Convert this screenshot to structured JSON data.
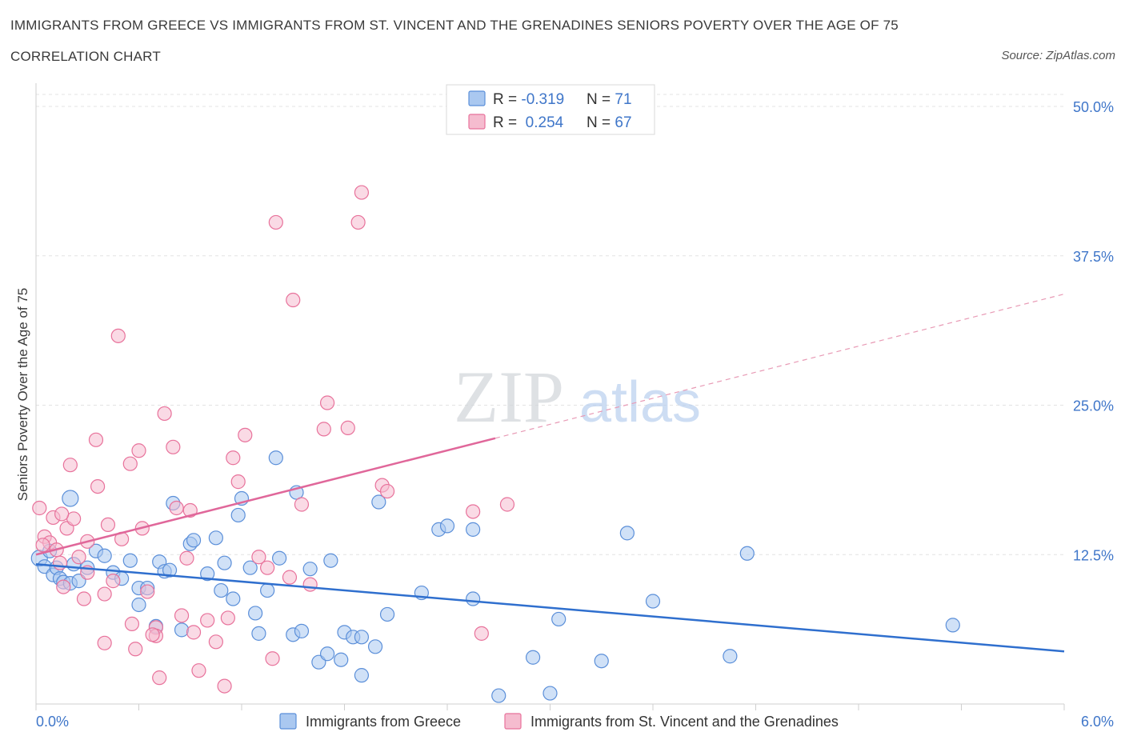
{
  "title": "IMMIGRANTS FROM GREECE VS IMMIGRANTS FROM ST. VINCENT AND THE GRENADINES SENIORS POVERTY OVER THE AGE OF 75",
  "subtitle": "CORRELATION CHART",
  "source": "Source: ZipAtlas.com",
  "watermark": {
    "zip": "ZIP",
    "atlas": "atlas"
  },
  "colors": {
    "blue": "#5b8fd9",
    "blue_fill": "#aac8f0",
    "pink": "#e8729b",
    "pink_fill": "#f5bccf",
    "axis_label": "#3f76c9"
  },
  "chart_data": {
    "type": "scatter",
    "ylabel": "Seniors Poverty Over the Age of 75",
    "xlim": [
      0,
      6
    ],
    "ylim": [
      0,
      50
    ],
    "x_tick_labels": {
      "min": "0.0%",
      "max": "6.0%"
    },
    "y_ticks": [
      {
        "value": 12.5,
        "label": "12.5%"
      },
      {
        "value": 25,
        "label": "25.0%"
      },
      {
        "value": 37.5,
        "label": "37.5%"
      },
      {
        "value": 50,
        "label": "50.0%"
      }
    ],
    "grid": true,
    "legend_position": "top-center",
    "legend": [
      {
        "r_label": "R = ",
        "r": "-0.319",
        "n_label": "N = ",
        "n": "71"
      },
      {
        "r_label": "R = ",
        "r": " 0.254",
        "n_label": "N = ",
        "n": "67"
      }
    ],
    "series": [
      {
        "name": "Immigrants from Greece",
        "color": "#5b8fd9",
        "trend": {
          "x0": 0,
          "y0": 11.7,
          "x1": 6,
          "y1": 4.4,
          "dashed_from": null
        },
        "points": [
          [
            0.02,
            12.2
          ],
          [
            0.05,
            11.5
          ],
          [
            0.08,
            12.8
          ],
          [
            0.1,
            10.8
          ],
          [
            0.12,
            11.4
          ],
          [
            0.14,
            10.5
          ],
          [
            0.16,
            10.2
          ],
          [
            0.2,
            10.1
          ],
          [
            0.22,
            11.7
          ],
          [
            0.25,
            10.3
          ],
          [
            0.3,
            11.4
          ],
          [
            0.35,
            12.8
          ],
          [
            0.4,
            12.4
          ],
          [
            0.45,
            11.0
          ],
          [
            0.5,
            10.5
          ],
          [
            0.55,
            12.0
          ],
          [
            0.6,
            9.7
          ],
          [
            0.6,
            8.3
          ],
          [
            0.65,
            9.7
          ],
          [
            0.7,
            6.5
          ],
          [
            0.72,
            11.9
          ],
          [
            0.75,
            11.1
          ],
          [
            0.78,
            11.2
          ],
          [
            0.8,
            16.8
          ],
          [
            0.85,
            6.2
          ],
          [
            0.9,
            13.4
          ],
          [
            0.92,
            13.7
          ],
          [
            1.0,
            10.9
          ],
          [
            1.05,
            13.9
          ],
          [
            1.08,
            9.5
          ],
          [
            1.1,
            11.8
          ],
          [
            1.15,
            8.8
          ],
          [
            1.18,
            15.8
          ],
          [
            1.2,
            17.2
          ],
          [
            1.25,
            11.4
          ],
          [
            1.28,
            7.6
          ],
          [
            1.3,
            5.9
          ],
          [
            1.35,
            9.5
          ],
          [
            1.4,
            20.6
          ],
          [
            1.42,
            12.2
          ],
          [
            1.5,
            5.8
          ],
          [
            1.52,
            17.7
          ],
          [
            1.55,
            6.1
          ],
          [
            1.6,
            11.3
          ],
          [
            1.65,
            3.5
          ],
          [
            1.7,
            4.2
          ],
          [
            1.72,
            12.0
          ],
          [
            1.78,
            3.7
          ],
          [
            1.8,
            6.0
          ],
          [
            1.85,
            5.6
          ],
          [
            1.9,
            5.6
          ],
          [
            1.9,
            2.4
          ],
          [
            1.98,
            4.8
          ],
          [
            2.0,
            16.9
          ],
          [
            2.05,
            7.5
          ],
          [
            2.25,
            9.3
          ],
          [
            2.35,
            14.6
          ],
          [
            2.4,
            14.9
          ],
          [
            2.55,
            14.6
          ],
          [
            2.55,
            8.8
          ],
          [
            2.7,
            0.7
          ],
          [
            2.9,
            3.9
          ],
          [
            3.0,
            0.9
          ],
          [
            3.05,
            7.1
          ],
          [
            3.3,
            3.6
          ],
          [
            3.45,
            14.3
          ],
          [
            3.6,
            8.6
          ],
          [
            4.05,
            4.0
          ],
          [
            4.15,
            12.6
          ],
          [
            5.35,
            6.6
          ],
          [
            0.2,
            17.2
          ]
        ]
      },
      {
        "name": "Immigrants from St. Vincent and the Grenadines",
        "color": "#e8729b",
        "trend": {
          "x0": 0,
          "y0": 12.5,
          "x1": 6,
          "y1": 34.3,
          "dashed_from": 2.68
        },
        "points": [
          [
            0.02,
            16.4
          ],
          [
            0.05,
            14.0
          ],
          [
            0.08,
            13.5
          ],
          [
            0.1,
            15.6
          ],
          [
            0.12,
            12.9
          ],
          [
            0.14,
            11.8
          ],
          [
            0.16,
            9.8
          ],
          [
            0.18,
            14.7
          ],
          [
            0.2,
            20.0
          ],
          [
            0.22,
            15.5
          ],
          [
            0.25,
            12.3
          ],
          [
            0.3,
            13.6
          ],
          [
            0.3,
            11.0
          ],
          [
            0.35,
            22.1
          ],
          [
            0.36,
            18.2
          ],
          [
            0.4,
            5.1
          ],
          [
            0.4,
            9.2
          ],
          [
            0.42,
            15.0
          ],
          [
            0.45,
            10.3
          ],
          [
            0.48,
            30.8
          ],
          [
            0.5,
            13.8
          ],
          [
            0.55,
            20.1
          ],
          [
            0.58,
            4.6
          ],
          [
            0.6,
            21.2
          ],
          [
            0.62,
            14.7
          ],
          [
            0.65,
            9.4
          ],
          [
            0.7,
            6.4
          ],
          [
            0.7,
            5.7
          ],
          [
            0.72,
            2.2
          ],
          [
            0.75,
            24.3
          ],
          [
            0.8,
            21.5
          ],
          [
            0.82,
            16.4
          ],
          [
            0.85,
            7.4
          ],
          [
            0.88,
            12.2
          ],
          [
            0.9,
            16.2
          ],
          [
            0.92,
            6.0
          ],
          [
            0.95,
            2.8
          ],
          [
            1.0,
            7.0
          ],
          [
            1.05,
            5.2
          ],
          [
            1.1,
            1.5
          ],
          [
            1.12,
            7.2
          ],
          [
            1.15,
            20.6
          ],
          [
            1.18,
            18.6
          ],
          [
            1.22,
            22.5
          ],
          [
            1.3,
            12.3
          ],
          [
            1.35,
            11.4
          ],
          [
            1.38,
            3.8
          ],
          [
            1.4,
            40.3
          ],
          [
            1.48,
            10.6
          ],
          [
            1.5,
            33.8
          ],
          [
            1.55,
            16.7
          ],
          [
            1.6,
            10.0
          ],
          [
            1.68,
            23.0
          ],
          [
            1.7,
            25.2
          ],
          [
            1.82,
            23.1
          ],
          [
            1.88,
            40.3
          ],
          [
            1.9,
            42.8
          ],
          [
            2.02,
            18.3
          ],
          [
            2.05,
            17.8
          ],
          [
            2.55,
            16.1
          ],
          [
            2.6,
            5.9
          ],
          [
            2.75,
            16.7
          ],
          [
            0.04,
            13.3
          ],
          [
            0.28,
            8.8
          ],
          [
            0.15,
            15.9
          ],
          [
            0.68,
            5.8
          ],
          [
            0.56,
            6.7
          ]
        ]
      }
    ]
  }
}
